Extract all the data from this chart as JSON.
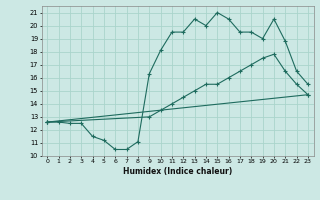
{
  "title": "",
  "xlabel": "Humidex (Indice chaleur)",
  "bg_color": "#cce8e4",
  "grid_color": "#aad4cc",
  "line_color": "#1e6b5e",
  "xlim": [
    0,
    23
  ],
  "ylim": [
    10,
    21
  ],
  "xticks": [
    0,
    1,
    2,
    3,
    4,
    5,
    6,
    7,
    8,
    9,
    10,
    11,
    12,
    13,
    14,
    15,
    16,
    17,
    18,
    19,
    20,
    21,
    22,
    23
  ],
  "yticks": [
    10,
    11,
    12,
    13,
    14,
    15,
    16,
    17,
    18,
    19,
    20,
    21
  ],
  "line1_x": [
    0,
    1,
    2,
    3,
    4,
    5,
    6,
    7,
    8,
    9,
    10,
    11,
    12,
    13,
    14,
    15,
    16,
    17,
    18,
    19,
    20,
    21,
    22,
    23
  ],
  "line1_y": [
    12.6,
    12.6,
    12.5,
    12.5,
    11.5,
    11.2,
    10.5,
    10.5,
    11.1,
    16.3,
    18.1,
    19.5,
    19.5,
    20.5,
    20.0,
    21.0,
    20.5,
    19.5,
    19.5,
    19.0,
    20.5,
    18.8,
    16.5,
    15.5
  ],
  "line2_x": [
    0,
    9,
    10,
    11,
    12,
    13,
    14,
    15,
    16,
    17,
    18,
    19,
    20,
    21,
    22,
    23
  ],
  "line2_y": [
    12.6,
    13.0,
    13.5,
    14.0,
    14.5,
    15.0,
    15.5,
    15.5,
    16.0,
    16.5,
    17.0,
    17.5,
    17.8,
    16.5,
    15.5,
    14.7
  ],
  "line3_x": [
    0,
    23
  ],
  "line3_y": [
    12.6,
    14.7
  ]
}
